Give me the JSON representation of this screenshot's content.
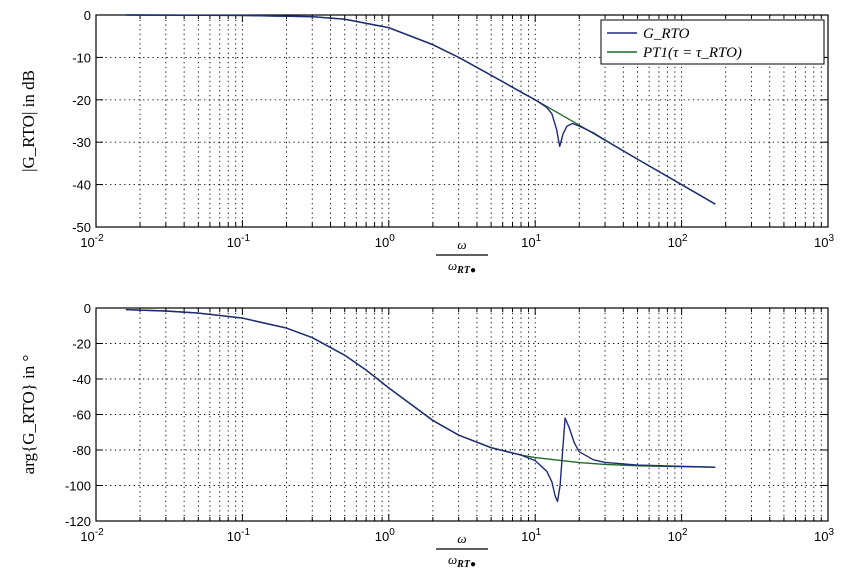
{
  "chart_data": [
    {
      "type": "line",
      "xscale": "log",
      "xlim": [
        0.01,
        1000
      ],
      "ylim": [
        -50,
        0
      ],
      "yticks": [
        0,
        -10,
        -20,
        -30,
        -40,
        -50
      ],
      "xtick_labels": [
        "10^-2",
        "10^-1",
        "10^0",
        "10^1",
        "10^2",
        "10^3"
      ],
      "ylabel": "|G_RTO| in dB",
      "xlabel": "ω / ω_RT●",
      "grid": true,
      "legend": {
        "placement": "top-right",
        "entries": [
          "G_RTO",
          "PT1(τ = τ_RTO)"
        ]
      },
      "series": [
        {
          "name": "G_RTO",
          "color": "#1f2a7a",
          "x": [
            0.016,
            0.1,
            0.3,
            0.5,
            1,
            2,
            3,
            5,
            8,
            10,
            12,
            13,
            14,
            14.7,
            15.5,
            16.5,
            18,
            20,
            25,
            30,
            50,
            100,
            170
          ],
          "y": [
            0,
            -0.1,
            -0.4,
            -1.0,
            -3.0,
            -7.0,
            -10.0,
            -14.2,
            -18.2,
            -20.0,
            -21.8,
            -23.3,
            -27.0,
            -31.0,
            -28.0,
            -26.2,
            -25.6,
            -26.2,
            -27.8,
            -29.5,
            -34.0,
            -40.0,
            -44.6
          ]
        },
        {
          "name": "PT1(τ = τ_RTO)",
          "color": "#1f6b2a",
          "x": [
            0.016,
            0.1,
            0.3,
            0.5,
            1,
            2,
            3,
            5,
            10,
            20,
            50,
            100,
            170
          ],
          "y": [
            0,
            -0.1,
            -0.4,
            -1.0,
            -3.0,
            -7.0,
            -10.0,
            -14.2,
            -20.0,
            -26.0,
            -34.0,
            -40.0,
            -44.6
          ]
        }
      ]
    },
    {
      "type": "line",
      "xscale": "log",
      "xlim": [
        0.01,
        1000
      ],
      "ylim": [
        -120,
        0
      ],
      "yticks": [
        0,
        -20,
        -40,
        -60,
        -80,
        -100,
        -120
      ],
      "xtick_labels": [
        "10^-2",
        "10^-1",
        "10^0",
        "10^1",
        "10^2",
        "10^3"
      ],
      "ylabel": "arg{G_RTO} in °",
      "xlabel": "ω / ω_RT●",
      "grid": true,
      "series": [
        {
          "name": "G_RTO",
          "color": "#1f2a7a",
          "x": [
            0.016,
            0.03,
            0.05,
            0.1,
            0.2,
            0.3,
            0.5,
            0.7,
            1,
            2,
            3,
            5,
            8,
            10,
            12,
            13,
            13.7,
            14.2,
            14.8,
            15.4,
            16,
            17,
            18.5,
            20,
            25,
            30,
            50,
            100,
            170
          ],
          "y": [
            -0.9,
            -1.7,
            -2.9,
            -5.7,
            -11.3,
            -16.7,
            -26.6,
            -35.0,
            -45.0,
            -63.4,
            -71.6,
            -78.7,
            -82.9,
            -86.0,
            -92.0,
            -98.0,
            -106.0,
            -109.0,
            -100.0,
            -80.0,
            -62.0,
            -67.0,
            -76.0,
            -81.0,
            -85.5,
            -87.0,
            -88.5,
            -89.2,
            -89.7
          ]
        },
        {
          "name": "PT1(τ = τ_RTO)",
          "color": "#1f6b2a",
          "x": [
            0.016,
            0.03,
            0.05,
            0.1,
            0.2,
            0.3,
            0.5,
            0.7,
            1,
            2,
            3,
            5,
            8,
            10,
            20,
            30,
            50,
            100,
            170
          ],
          "y": [
            -0.9,
            -1.7,
            -2.9,
            -5.7,
            -11.3,
            -16.7,
            -26.6,
            -35.0,
            -45.0,
            -63.4,
            -71.6,
            -78.7,
            -82.9,
            -84.3,
            -87.1,
            -88.1,
            -88.9,
            -89.4,
            -89.7
          ]
        }
      ]
    }
  ]
}
